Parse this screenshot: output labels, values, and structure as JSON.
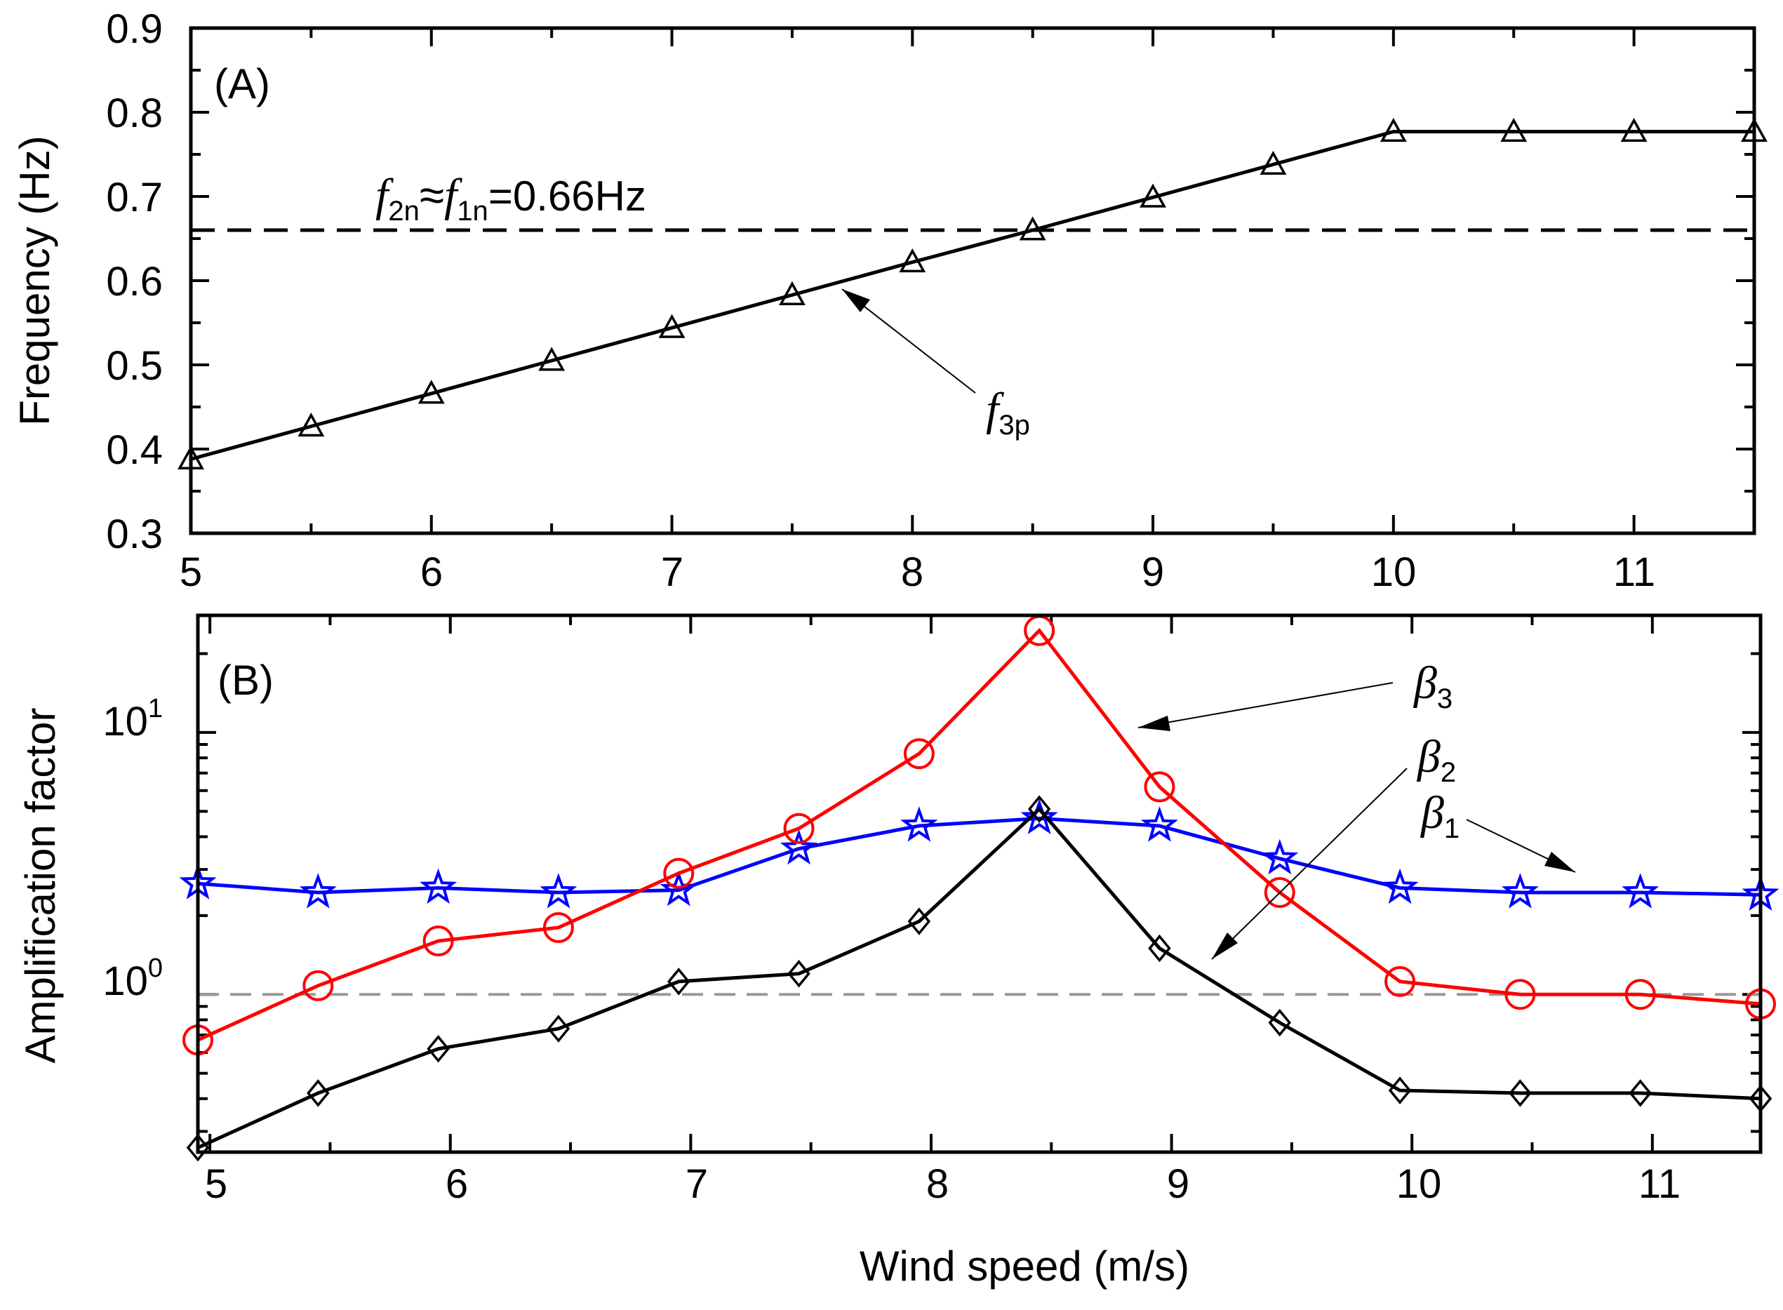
{
  "chart_data": [
    {
      "type": "line",
      "panel": "(A)",
      "ylabel": "Frequency (Hz)",
      "xlabel": "",
      "xlim": [
        5,
        11.5
      ],
      "ylim": [
        0.3,
        0.9
      ],
      "x_ticks": [
        "5",
        "6",
        "7",
        "8",
        "9",
        "10",
        "11"
      ],
      "y_ticks": [
        "0.3",
        "0.4",
        "0.5",
        "0.6",
        "0.7",
        "0.8",
        "0.9"
      ],
      "reference_line": {
        "value": 0.66,
        "style": "dashed",
        "label": {
          "f": "f",
          "sub2": "2n",
          "approx": "≈",
          "sub1": "1n",
          "value": "=0.66Hz"
        }
      },
      "series": [
        {
          "name": "f3p",
          "color": "#000000",
          "marker": "triangle",
          "x": [
            5,
            5.5,
            6,
            6.5,
            7,
            7.5,
            8,
            8.5,
            9,
            9.5,
            10,
            10.5,
            11,
            11.5
          ],
          "values": [
            0.388,
            0.427,
            0.466,
            0.505,
            0.544,
            0.583,
            0.622,
            0.66,
            0.699,
            0.738,
            0.777,
            0.777,
            0.777,
            0.777
          ]
        }
      ],
      "annotations": [
        {
          "f": "f",
          "sub": "3p",
          "target": [
            7.72,
            0.597
          ]
        }
      ]
    },
    {
      "type": "line",
      "panel": "(B)",
      "ylabel": "Amplification factor",
      "xlabel": "Wind speed (m/s)",
      "yscale": "log",
      "xlim": [
        4.95,
        11.45
      ],
      "ylim": [
        0.25,
        28
      ],
      "x_ticks": [
        "5",
        "6",
        "7",
        "8",
        "9",
        "10",
        "11"
      ],
      "y_ticks": [
        {
          "base": "10",
          "exp": "1",
          "value": 10
        },
        {
          "base": "10",
          "exp": "0",
          "value": 1
        }
      ],
      "reference_line": {
        "value": 1,
        "style": "dashed",
        "color": "#999999"
      },
      "series": [
        {
          "name": "β1",
          "color": "#0000ff",
          "marker": "star",
          "x": [
            4.95,
            5.45,
            5.95,
            6.45,
            6.95,
            7.45,
            7.95,
            8.45,
            8.95,
            9.45,
            9.95,
            10.45,
            10.95,
            11.45
          ],
          "values": [
            2.65,
            2.45,
            2.55,
            2.45,
            2.5,
            3.6,
            4.4,
            4.7,
            4.4,
            3.3,
            2.55,
            2.45,
            2.45,
            2.4
          ]
        },
        {
          "name": "β3",
          "color": "#ff0000",
          "marker": "circle",
          "x": [
            4.95,
            5.45,
            5.95,
            6.45,
            6.95,
            7.45,
            7.95,
            8.45,
            8.95,
            9.45,
            9.95,
            10.45,
            10.95,
            11.45
          ],
          "values": [
            0.67,
            1.08,
            1.6,
            1.8,
            2.9,
            4.3,
            8.3,
            24.5,
            6.2,
            2.45,
            1.12,
            1.0,
            1.0,
            0.92
          ]
        },
        {
          "name": "β2",
          "color": "#000000",
          "marker": "diamond",
          "x": [
            4.95,
            5.45,
            5.95,
            6.45,
            6.95,
            7.45,
            7.95,
            8.45,
            8.95,
            9.45,
            9.95,
            10.45,
            10.95,
            11.45
          ],
          "values": [
            0.26,
            0.42,
            0.62,
            0.74,
            1.12,
            1.2,
            1.9,
            5.1,
            1.5,
            0.78,
            0.43,
            0.42,
            0.42,
            0.4
          ]
        }
      ],
      "annotations": [
        {
          "beta": "β",
          "sub": "3",
          "series": "β3",
          "target": [
            9.08,
            9.2
          ]
        },
        {
          "beta": "β",
          "sub": "2",
          "series": "β2",
          "target": [
            9.15,
            1.15
          ]
        },
        {
          "beta": "β",
          "sub": "1",
          "series": "β1",
          "target": [
            10.67,
            2.5
          ]
        }
      ]
    }
  ]
}
